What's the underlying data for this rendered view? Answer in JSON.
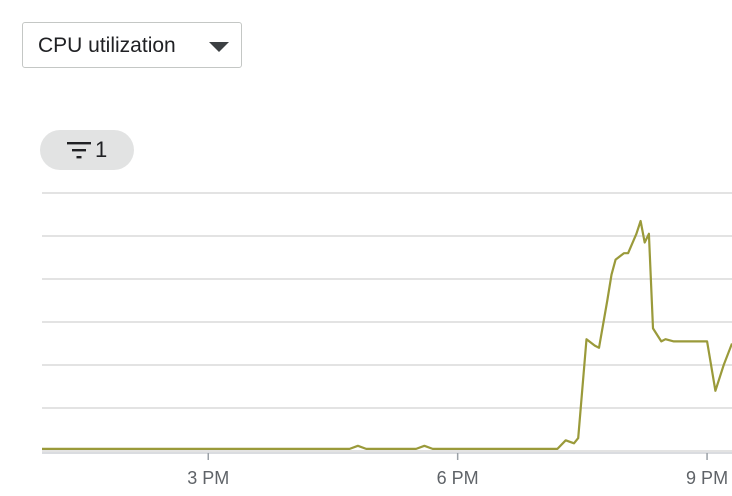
{
  "metric_select": {
    "label": "CPU utilization",
    "icon": "dropdown-caret-icon"
  },
  "filter_chip": {
    "icon": "filter-icon",
    "count": "1"
  },
  "chart_data": {
    "type": "line",
    "title": "",
    "xlabel": "",
    "ylabel": "",
    "x_ticks": [
      {
        "label": "3 PM",
        "hour": 15
      },
      {
        "label": "6 PM",
        "hour": 18
      },
      {
        "label": "9 PM",
        "hour": 21
      }
    ],
    "xlim": [
      13.0,
      21.3
    ],
    "ylim": [
      0,
      6
    ],
    "gridlines_y": [
      0,
      1,
      2,
      3,
      4,
      5,
      6
    ],
    "grid": true,
    "legend": "none",
    "series": [
      {
        "color": "#9a9a3a",
        "x": [
          13.0,
          16.7,
          16.8,
          16.9,
          17.5,
          17.6,
          17.7,
          19.2,
          19.3,
          19.4,
          19.45,
          19.55,
          19.65,
          19.7,
          19.8,
          19.85,
          19.9,
          20.0,
          20.05,
          20.15,
          20.2,
          20.25,
          20.3,
          20.35,
          20.45,
          20.5,
          20.6,
          20.7,
          20.8,
          20.9,
          21.0,
          21.1,
          21.2,
          21.3
        ],
        "y": [
          0.05,
          0.05,
          0.12,
          0.05,
          0.05,
          0.12,
          0.05,
          0.05,
          0.25,
          0.18,
          0.3,
          2.6,
          2.45,
          2.4,
          3.5,
          4.1,
          4.45,
          4.6,
          4.6,
          5.05,
          5.35,
          4.85,
          5.05,
          2.85,
          2.55,
          2.6,
          2.55,
          2.55,
          2.55,
          2.55,
          2.55,
          1.4,
          2.0,
          2.5
        ]
      }
    ]
  }
}
